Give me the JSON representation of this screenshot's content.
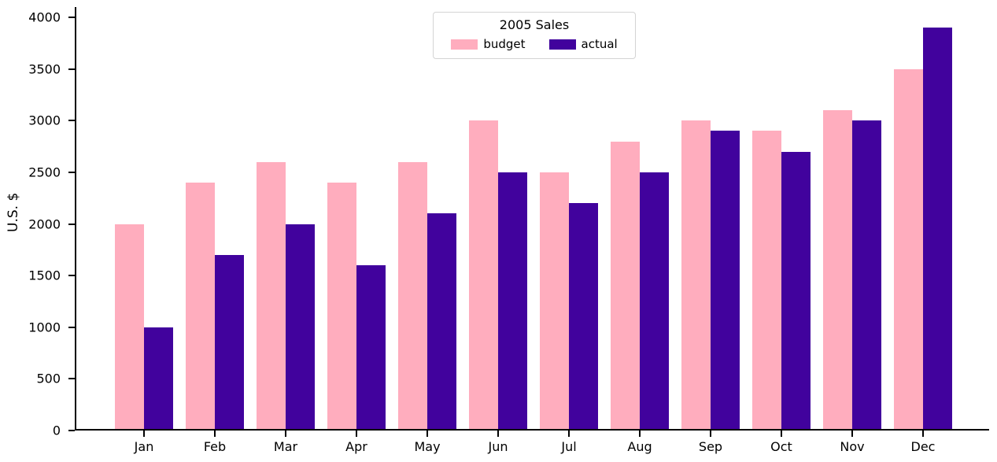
{
  "chart_data": {
    "type": "bar",
    "title": "",
    "xlabel": "",
    "ylabel": "U.S. $",
    "categories": [
      "Jan",
      "Feb",
      "Mar",
      "Apr",
      "May",
      "Jun",
      "Jul",
      "Aug",
      "Sep",
      "Oct",
      "Nov",
      "Dec"
    ],
    "series": [
      {
        "name": "budget",
        "color": "#ffadbe",
        "values": [
          2000,
          2400,
          2600,
          2400,
          2600,
          3000,
          2500,
          2800,
          3000,
          2900,
          3100,
          3500
        ]
      },
      {
        "name": "actual",
        "color": "#41029d",
        "values": [
          1000,
          1700,
          2000,
          1600,
          2100,
          2500,
          2200,
          2500,
          2900,
          2700,
          3000,
          3900
        ]
      }
    ],
    "ylim": [
      0,
      4100
    ],
    "yticks": [
      0,
      500,
      1000,
      1500,
      2000,
      2500,
      3000,
      3500,
      4000
    ],
    "grid": false,
    "legend": {
      "title": "2005 Sales",
      "position": "upper center",
      "entries": [
        "budget",
        "actual"
      ]
    },
    "colors": {
      "axis": "#000000",
      "background": "#ffffff",
      "legend_border": "#d4d4d4"
    }
  }
}
